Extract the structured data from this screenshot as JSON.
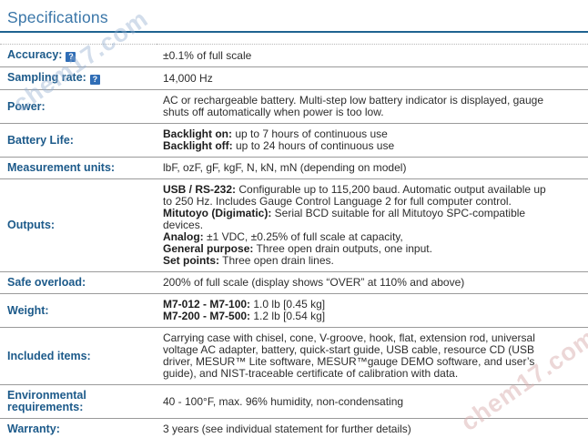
{
  "page_title": "Specifications",
  "help_icon_glyph": "?",
  "watermarks": {
    "top_left": "chem17.com",
    "bottom_right": "chem17.com"
  },
  "colors": {
    "title_text": "#3a76a8",
    "title_rule": "#1f6391",
    "label_text": "#1c5a8a",
    "value_text": "#2d2d2d",
    "row_separator": "#9a9a9a",
    "table_bottom_border": "#15153a",
    "help_icon_background": "#2f6db6"
  },
  "table": {
    "rows": [
      {
        "label": "Accuracy:",
        "help_icon": true,
        "lines": [
          [
            {
              "t": "±0.1% of full scale"
            }
          ]
        ]
      },
      {
        "label": "Sampling rate:",
        "help_icon": true,
        "lines": [
          [
            {
              "t": "14,000 Hz"
            }
          ]
        ]
      },
      {
        "label": "Power:",
        "help_icon": false,
        "lines": [
          [
            {
              "t": "AC or rechargeable battery. Multi-step low battery indicator is displayed, gauge shuts off automatically when power is too low."
            }
          ]
        ]
      },
      {
        "label": "Battery Life:",
        "help_icon": false,
        "lines": [
          [
            {
              "b": true,
              "t": "Backlight on:"
            },
            {
              "t": " up to 7 hours of continuous use"
            }
          ],
          [
            {
              "b": true,
              "t": "Backlight off:"
            },
            {
              "t": " up to 24 hours of continuous use"
            }
          ]
        ]
      },
      {
        "label": "Measurement units:",
        "help_icon": false,
        "lines": [
          [
            {
              "t": "lbF, ozF, gF, kgF, N, kN, mN (depending on model)"
            }
          ]
        ]
      },
      {
        "label": "Outputs:",
        "help_icon": false,
        "lines": [
          [
            {
              "b": true,
              "t": "USB / RS-232:"
            },
            {
              "t": " Configurable up to 115,200 baud. Automatic output available up to 250 Hz. Includes Gauge Control Language 2 for full computer control."
            }
          ],
          [
            {
              "b": true,
              "t": "Mitutoyo (Digimatic):"
            },
            {
              "t": " Serial BCD suitable for all Mitutoyo SPC-compatible devices."
            }
          ],
          [
            {
              "b": true,
              "t": "Analog:"
            },
            {
              "t": " ±1 VDC, ±0.25% of full scale at capacity,"
            }
          ],
          [
            {
              "b": true,
              "t": "General purpose:"
            },
            {
              "t": " Three open drain outputs, one input."
            }
          ],
          [
            {
              "b": true,
              "t": "Set points:"
            },
            {
              "t": " Three open drain lines."
            }
          ]
        ]
      },
      {
        "label": "Safe overload:",
        "help_icon": false,
        "lines": [
          [
            {
              "t": "200% of full scale (display shows “OVER” at 110% and above)"
            }
          ]
        ]
      },
      {
        "label": "Weight:",
        "help_icon": false,
        "lines": [
          [
            {
              "b": true,
              "t": "M7-012 - M7-100:"
            },
            {
              "t": " 1.0 lb [0.45 kg]"
            }
          ],
          [
            {
              "b": true,
              "t": "M7-200 - M7-500:"
            },
            {
              "t": " 1.2 lb [0.54 kg]"
            }
          ]
        ]
      },
      {
        "label": "Included items:",
        "help_icon": false,
        "lines": [
          [
            {
              "t": "Carrying case with chisel, cone, V-groove, hook, flat, extension rod, universal voltage AC adapter, battery, quick-start guide, USB cable, resource CD (USB driver, MESUR™ Lite software, MESUR™gauge DEMO software, and user’s guide), and NIST-traceable certificate of calibration with data."
            }
          ]
        ]
      },
      {
        "label": "Environmental requirements:",
        "help_icon": false,
        "lines": [
          [
            {
              "t": "40 - 100°F, max. 96% humidity, non-condensating"
            }
          ]
        ]
      },
      {
        "label": "Warranty:",
        "help_icon": false,
        "lines": [
          [
            {
              "t": "3 years (see individual statement for further details)"
            }
          ]
        ]
      }
    ]
  }
}
